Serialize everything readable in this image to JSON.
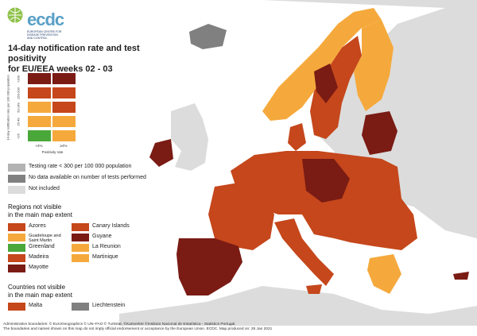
{
  "header": {
    "logo_text": "ecdc",
    "logo_subtext": "EUROPEAN CENTRE FOR DISEASE PREVENTION AND CONTROL",
    "title_line1": "14-day notification rate and test positivity",
    "title_line2": "for EU/EEA weeks 02 - 03"
  },
  "colors": {
    "green": "#4aa83b",
    "light_orange": "#f5a93c",
    "orange_red": "#c5471b",
    "dark_red": "#7a1b14",
    "grey_low_testing": "#b3b3b3",
    "grey_no_data": "#808080",
    "not_included": "#dcdcdc",
    "sea": "#ffffff"
  },
  "matrix": {
    "y_axis_title": "14-day notification rate per 100 000 population",
    "y_ticks": [
      ">200",
      "150-200",
      "50-149",
      "25-49",
      "<25"
    ],
    "x_ticks": [
      "<4%",
      "≥4%"
    ],
    "x_axis_title": "Positivity rate",
    "cells": [
      [
        "dark_red",
        "dark_red"
      ],
      [
        "orange_red",
        "orange_red"
      ],
      [
        "light_orange",
        "orange_red"
      ],
      [
        "light_orange",
        "light_orange"
      ],
      [
        "green",
        "light_orange"
      ]
    ]
  },
  "legend": {
    "low_testing": "Testing rate < 300 per 100 000 population",
    "no_data": "No data available on number of tests performed",
    "not_included": "Not included"
  },
  "regions_section": {
    "heading_line1": "Regions not visible",
    "heading_line2": "in the main map extent",
    "items": [
      {
        "label": "Azores",
        "color": "orange_red"
      },
      {
        "label": "Canary Islands",
        "color": "orange_red"
      },
      {
        "label": "Guadeloupe and Saint Martin",
        "color": "light_orange"
      },
      {
        "label": "Guyane",
        "color": "dark_red"
      },
      {
        "label": "Greenland",
        "color": "green"
      },
      {
        "label": "La Reunion",
        "color": "light_orange"
      },
      {
        "label": "Madeira",
        "color": "orange_red"
      },
      {
        "label": "Martinique",
        "color": "light_orange"
      },
      {
        "label": "Mayotte",
        "color": "dark_red"
      }
    ]
  },
  "countries_section": {
    "heading_line1": "Countries not visible",
    "heading_line2": "in the main map extent",
    "items": [
      {
        "label": "Malta",
        "color": "orange_red"
      },
      {
        "label": "Liechtenstein",
        "color": "grey_no_data"
      }
    ]
  },
  "footer": {
    "line1": "Administrative boundaries: © EuroGeographics © UN–FAO © Turkstat. ©Kartverket ©Instituto Nacional de Estatística - Statistics Portugal.",
    "line2": "The boundaries and names shown on this map do not imply official endorsement or acceptance by the European Union. ECDC. Map produced on: 28 Jan 2021"
  }
}
